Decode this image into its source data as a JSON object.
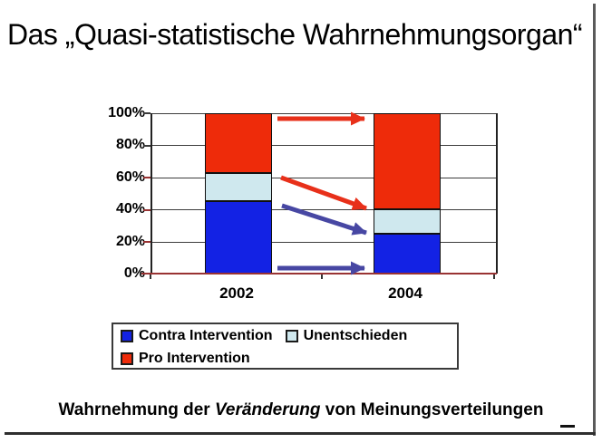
{
  "title": "Das „Quasi-statistische Wahrnehmungsorgan“",
  "caption": {
    "part1": "Wahrnehmung der ",
    "italic": "Veränderung",
    "part2": " von Meinungsverteilungen"
  },
  "colors": {
    "grid": "#3d3d3d",
    "baseline": "#993333",
    "arrow_red": "#e8301a",
    "arrow_blue": "#4747a3"
  },
  "chart_data": {
    "type": "bar",
    "stacked": true,
    "title": "",
    "categories": [
      "2002",
      "2004"
    ],
    "series": [
      {
        "name": "Contra Intervention",
        "color": "#1322e4",
        "values": [
          45,
          25
        ]
      },
      {
        "name": "Unentschieden",
        "color": "#cfe8ee",
        "values": [
          18,
          15
        ]
      },
      {
        "name": "Pro Intervention",
        "color": "#ee2b0a",
        "values": [
          37,
          60
        ]
      }
    ],
    "y_ticks": [
      "100%",
      "80%",
      "60%",
      "40%",
      "20%",
      "0%"
    ],
    "ylim": [
      0,
      100
    ],
    "grid": "horizontal",
    "legend_position": "below",
    "annotations": [
      {
        "type": "arrow",
        "color": "red",
        "desc": "top of Pro Intervention stays at 100%",
        "from_pct": 96,
        "to_pct": 96
      },
      {
        "type": "arrow",
        "color": "red",
        "desc": "Pro/Unentschieden boundary moves 63% to 40%",
        "from_pct": 62,
        "to_pct": 40
      },
      {
        "type": "arrow",
        "color": "blue",
        "desc": "Unentschieden/Contra boundary moves 45% to 25%",
        "from_pct": 42,
        "to_pct": 25
      },
      {
        "type": "arrow",
        "color": "blue",
        "desc": "baseline stays at 0%",
        "from_pct": 3,
        "to_pct": 3
      }
    ]
  }
}
